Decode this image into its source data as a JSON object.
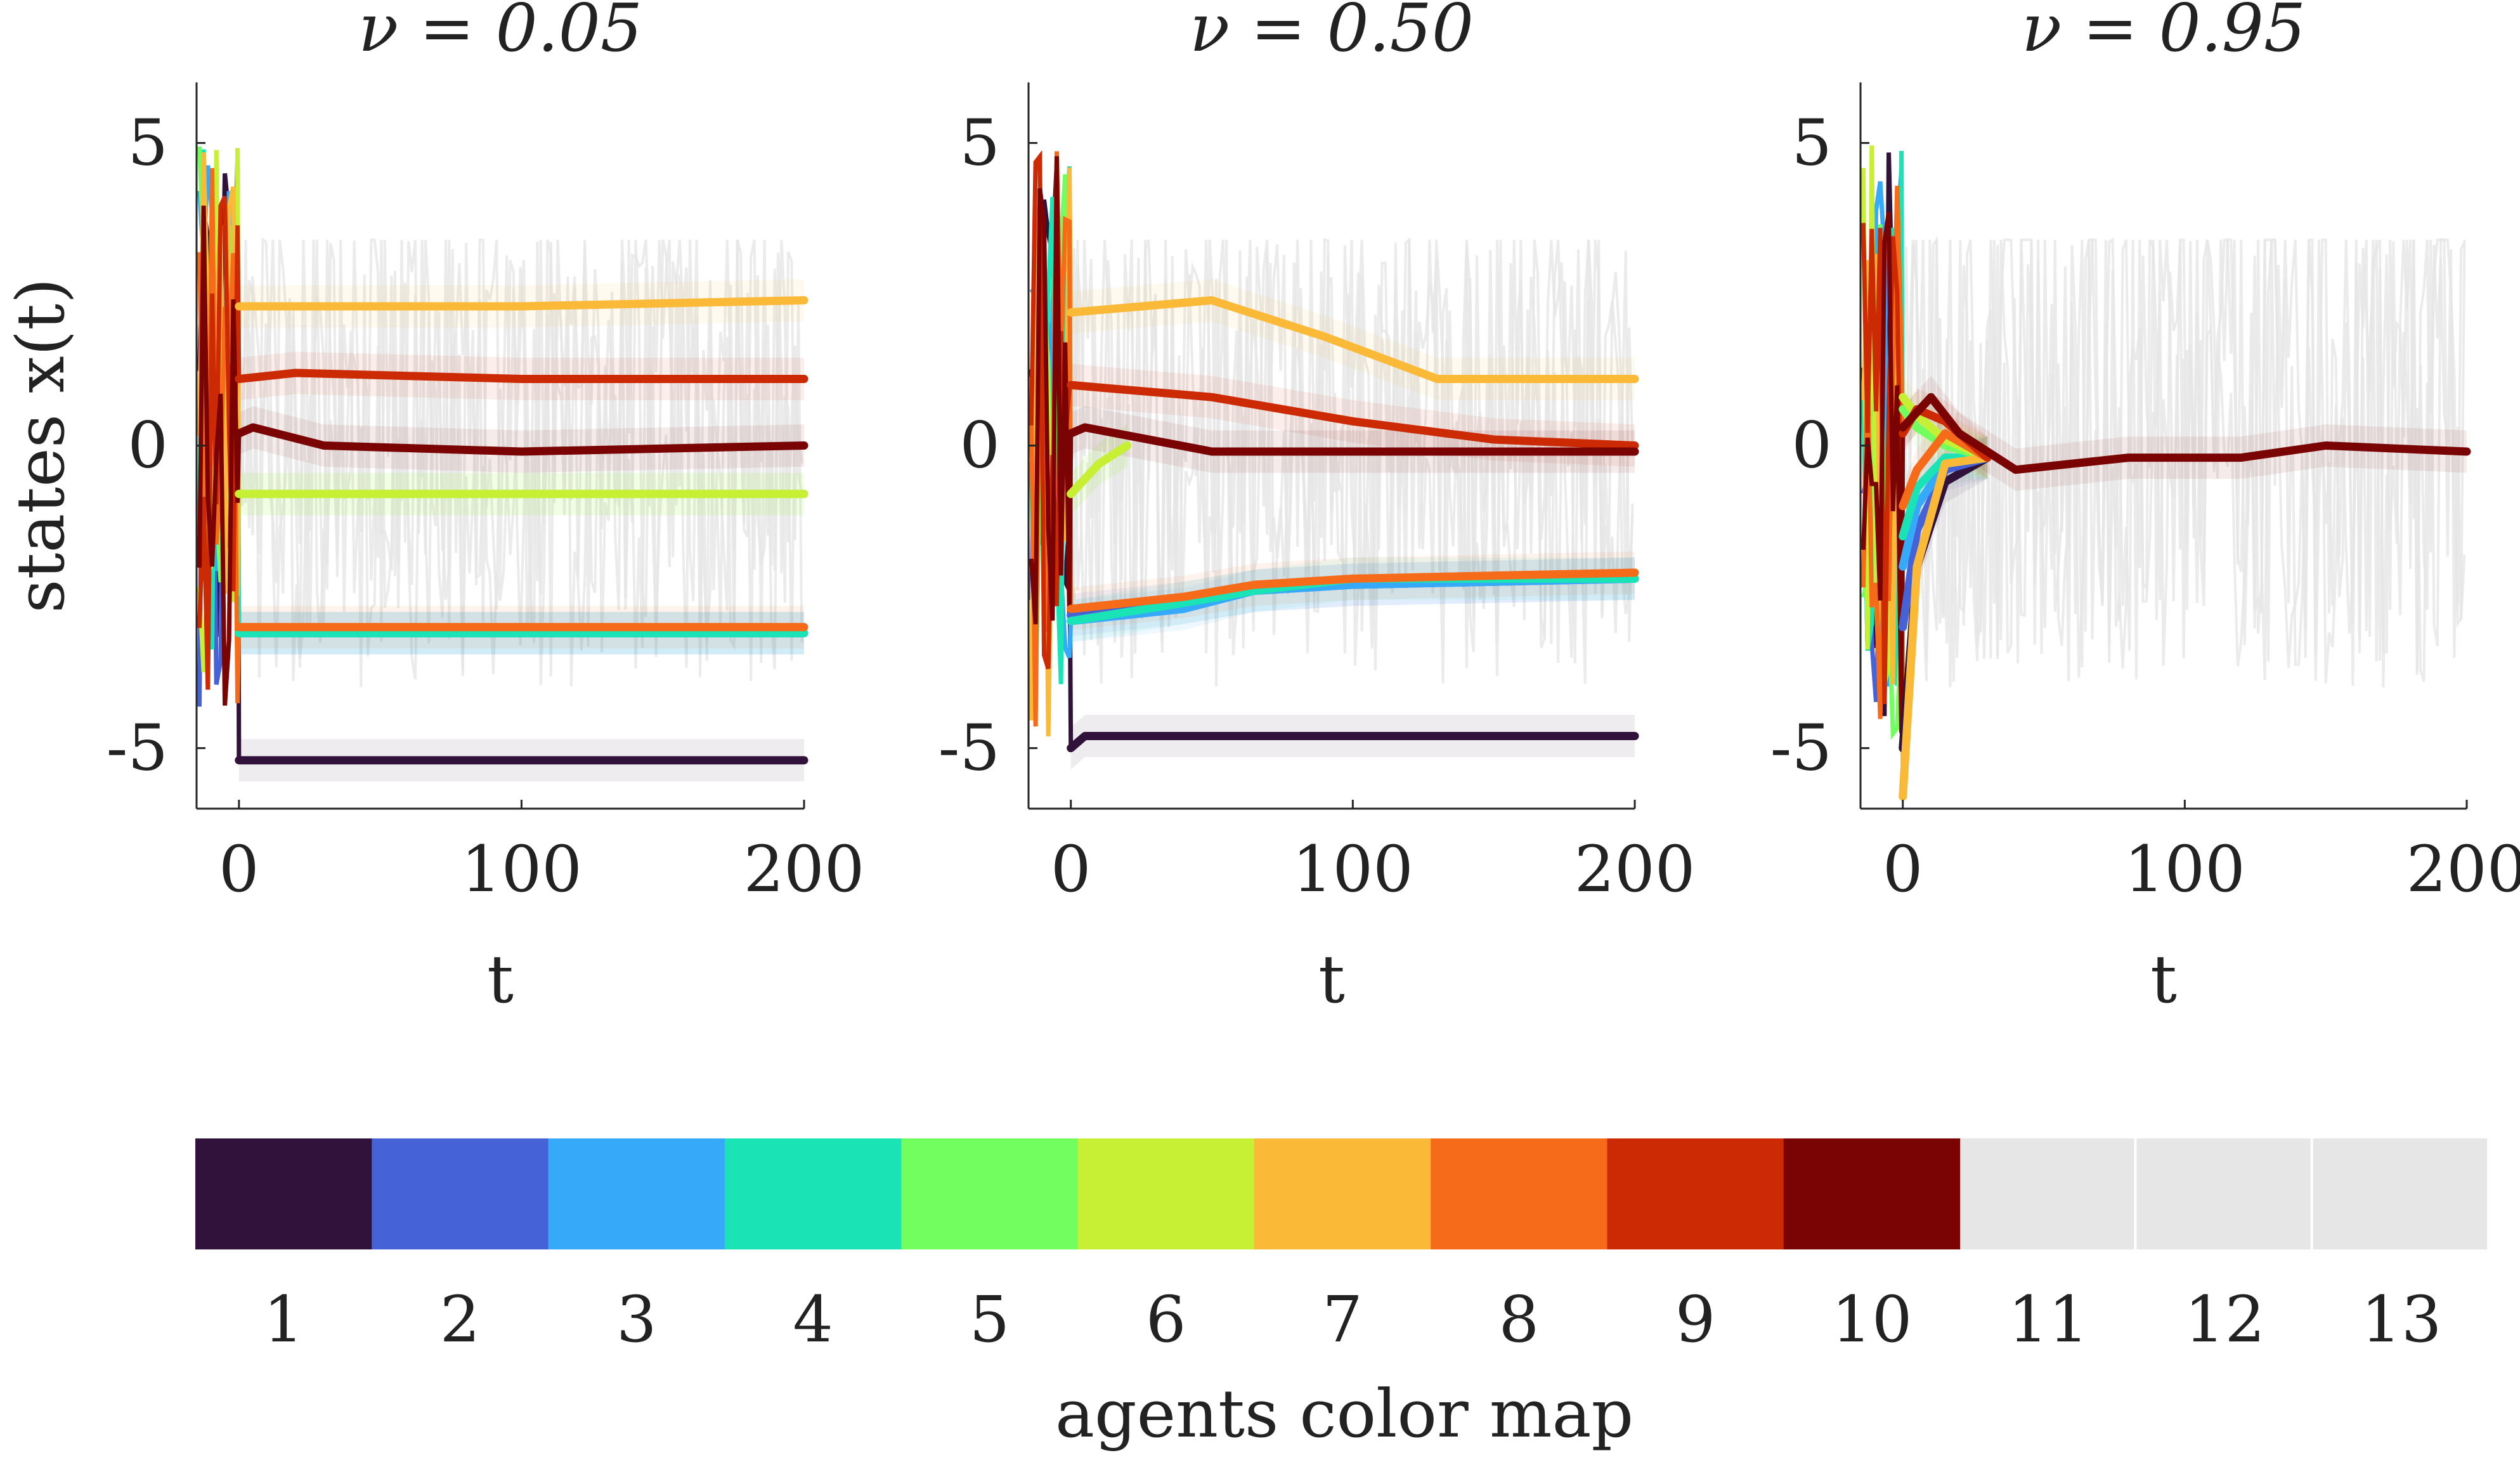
{
  "figure": {
    "colorbar_label": "agents color map",
    "colorbar_agents": [
      "1",
      "2",
      "3",
      "4",
      "5",
      "6",
      "7",
      "8",
      "9",
      "10",
      "11",
      "12",
      "13"
    ],
    "agent_colors": [
      "#30123b",
      "#4662d7",
      "#36aaf9",
      "#1ae4b6",
      "#72fe5e",
      "#c7ef34",
      "#fbb938",
      "#f66b19",
      "#cb2a04",
      "#7a0403",
      "#e6e6e6",
      "#e6e6e6",
      "#e6e6e6"
    ]
  },
  "chart_data": [
    {
      "type": "line",
      "title": "ν = 0.05",
      "xlabel": "t",
      "ylabel": "states x(t)",
      "xlim": [
        -15,
        200
      ],
      "ylim": [
        -6,
        6
      ],
      "xticks": [
        "0",
        "100",
        "200"
      ],
      "yticks": [
        "5",
        "0",
        "-5"
      ],
      "grid": false,
      "series": [
        {
          "agent": 1,
          "x": [
            0,
            200
          ],
          "y": [
            -5.2,
            -5.2
          ]
        },
        {
          "agent": 2,
          "x": [
            0,
            200
          ],
          "y": [
            -3.1,
            -3.1
          ]
        },
        {
          "agent": 3,
          "x": [
            0,
            200
          ],
          "y": [
            -3.1,
            -3.1
          ]
        },
        {
          "agent": 4,
          "x": [
            0,
            200
          ],
          "y": [
            -3.1,
            -3.1
          ]
        },
        {
          "agent": 5,
          "x": [
            0,
            200
          ],
          "y": [
            -0.8,
            -0.8
          ]
        },
        {
          "agent": 6,
          "x": [
            0,
            200
          ],
          "y": [
            -0.8,
            -0.8
          ]
        },
        {
          "agent": 7,
          "x": [
            0,
            50,
            100,
            200
          ],
          "y": [
            2.3,
            2.3,
            2.3,
            2.4
          ]
        },
        {
          "agent": 8,
          "x": [
            0,
            200
          ],
          "y": [
            -3.0,
            -3.0
          ]
        },
        {
          "agent": 9,
          "x": [
            0,
            20,
            100,
            200
          ],
          "y": [
            1.1,
            1.2,
            1.1,
            1.1
          ]
        },
        {
          "agent": 10,
          "x": [
            0,
            5,
            30,
            100,
            200
          ],
          "y": [
            0.2,
            0.3,
            0.0,
            -0.1,
            0.0
          ]
        }
      ]
    },
    {
      "type": "line",
      "title": "ν = 0.50",
      "xlabel": "t",
      "xlim": [
        -15,
        200
      ],
      "ylim": [
        -6,
        6
      ],
      "xticks": [
        "0",
        "100",
        "200"
      ],
      "yticks": [
        "5",
        "0",
        "-5"
      ],
      "grid": false,
      "series": [
        {
          "agent": 1,
          "x": [
            0,
            5,
            200
          ],
          "y": [
            -5.0,
            -4.8,
            -4.8
          ]
        },
        {
          "agent": 2,
          "x": [
            0,
            40,
            65,
            100,
            200
          ],
          "y": [
            -2.8,
            -2.6,
            -2.4,
            -2.3,
            -2.2
          ]
        },
        {
          "agent": 3,
          "x": [
            0,
            40,
            65,
            100,
            200
          ],
          "y": [
            -2.9,
            -2.7,
            -2.4,
            -2.3,
            -2.2
          ]
        },
        {
          "agent": 4,
          "x": [
            0,
            40,
            65,
            100,
            200
          ],
          "y": [
            -2.9,
            -2.6,
            -2.4,
            -2.2,
            -2.2
          ]
        },
        {
          "agent": 5,
          "x": [
            0,
            10,
            20
          ],
          "y": [
            -0.8,
            -0.3,
            0.0
          ]
        },
        {
          "agent": 6,
          "x": [
            0,
            10,
            20
          ],
          "y": [
            -0.8,
            -0.3,
            0.0
          ]
        },
        {
          "agent": 7,
          "x": [
            0,
            50,
            90,
            130,
            200
          ],
          "y": [
            2.2,
            2.4,
            1.8,
            1.1,
            1.1
          ]
        },
        {
          "agent": 8,
          "x": [
            0,
            40,
            65,
            100,
            200
          ],
          "y": [
            -2.7,
            -2.5,
            -2.3,
            -2.2,
            -2.1
          ]
        },
        {
          "agent": 9,
          "x": [
            0,
            50,
            100,
            150,
            200
          ],
          "y": [
            1.0,
            0.8,
            0.4,
            0.1,
            0.0
          ]
        },
        {
          "agent": 10,
          "x": [
            0,
            5,
            50,
            100,
            200
          ],
          "y": [
            0.2,
            0.3,
            -0.1,
            -0.1,
            -0.1
          ]
        }
      ]
    },
    {
      "type": "line",
      "title": "ν = 0.95",
      "xlabel": "t",
      "xlim": [
        -15,
        200
      ],
      "ylim": [
        -6,
        6
      ],
      "xticks": [
        "0",
        "100",
        "200"
      ],
      "yticks": [
        "5",
        "0",
        "-5"
      ],
      "grid": false,
      "series": [
        {
          "agent": 1,
          "x": [
            0,
            5,
            15,
            30
          ],
          "y": [
            -5.0,
            -2.0,
            -0.6,
            -0.2
          ]
        },
        {
          "agent": 2,
          "x": [
            0,
            5,
            15,
            30
          ],
          "y": [
            -3.0,
            -1.4,
            -0.4,
            -0.2
          ]
        },
        {
          "agent": 3,
          "x": [
            0,
            5,
            15,
            30
          ],
          "y": [
            -2.0,
            -1.0,
            -0.3,
            -0.2
          ]
        },
        {
          "agent": 4,
          "x": [
            0,
            5,
            15,
            30
          ],
          "y": [
            -1.5,
            -0.7,
            -0.2,
            -0.2
          ]
        },
        {
          "agent": 5,
          "x": [
            0,
            5,
            15,
            30
          ],
          "y": [
            0.6,
            0.3,
            0.0,
            -0.2
          ]
        },
        {
          "agent": 6,
          "x": [
            0,
            5,
            15,
            30
          ],
          "y": [
            0.8,
            0.5,
            0.1,
            -0.2
          ]
        },
        {
          "agent": 7,
          "x": [
            0,
            5,
            15,
            30
          ],
          "y": [
            -5.8,
            -2.0,
            -0.3,
            -0.2
          ]
        },
        {
          "agent": 8,
          "x": [
            0,
            5,
            15,
            30
          ],
          "y": [
            -1.0,
            -0.4,
            0.2,
            -0.2
          ]
        },
        {
          "agent": 9,
          "x": [
            0,
            5,
            15,
            30
          ],
          "y": [
            0.2,
            0.6,
            0.4,
            -0.2
          ]
        },
        {
          "agent": 10,
          "x": [
            0,
            10,
            20,
            40,
            80,
            120,
            150,
            200
          ],
          "y": [
            0.3,
            0.8,
            0.2,
            -0.4,
            -0.2,
            -0.2,
            0.0,
            -0.1
          ]
        }
      ]
    }
  ]
}
